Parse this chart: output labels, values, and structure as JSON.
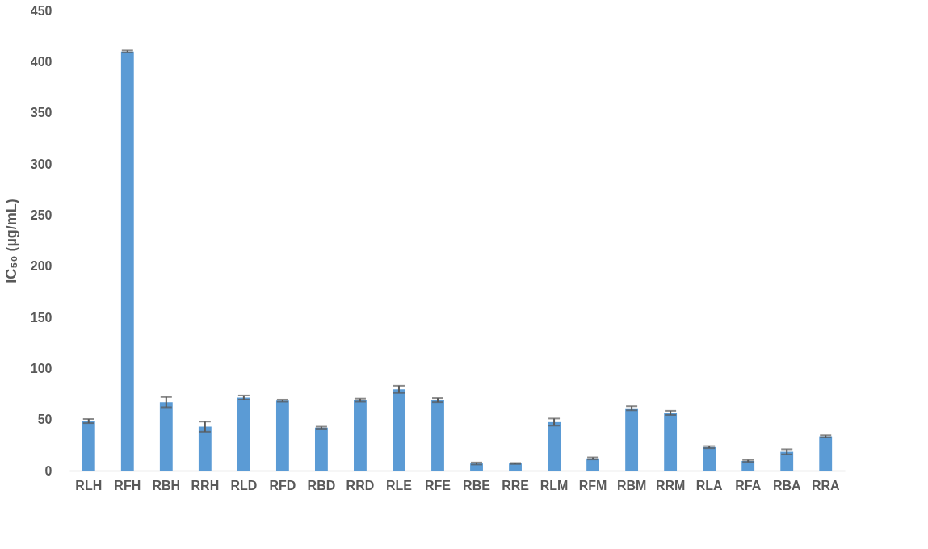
{
  "chart_data": {
    "type": "bar",
    "ylabel": "IC₅₀ (µg/mL)",
    "categories": [
      "RLH",
      "RFH",
      "RBH",
      "RRH",
      "RLD",
      "RFD",
      "RBD",
      "RRD",
      "RLE",
      "RFE",
      "RBE",
      "RRE",
      "RLM",
      "RFM",
      "RBM",
      "RRM",
      "RLA",
      "RFA",
      "RBA",
      "RRA"
    ],
    "values": [
      48.5,
      410,
      67,
      43,
      71.5,
      68.5,
      42,
      69,
      79.5,
      69,
      7,
      7,
      47.5,
      12,
      61,
      56.5,
      23,
      9.5,
      18.5,
      33.5
    ],
    "errors": [
      2,
      1,
      5,
      5,
      2,
      1,
      1,
      1.5,
      3.5,
      2,
      1,
      0.5,
      3.5,
      1,
      2,
      2,
      1,
      1,
      2.5,
      1
    ],
    "color": "#5b9bd5",
    "ylim": [
      0,
      450
    ],
    "yticks": [
      0,
      50,
      100,
      150,
      200,
      250,
      300,
      350,
      400,
      450
    ],
    "grid": false
  }
}
